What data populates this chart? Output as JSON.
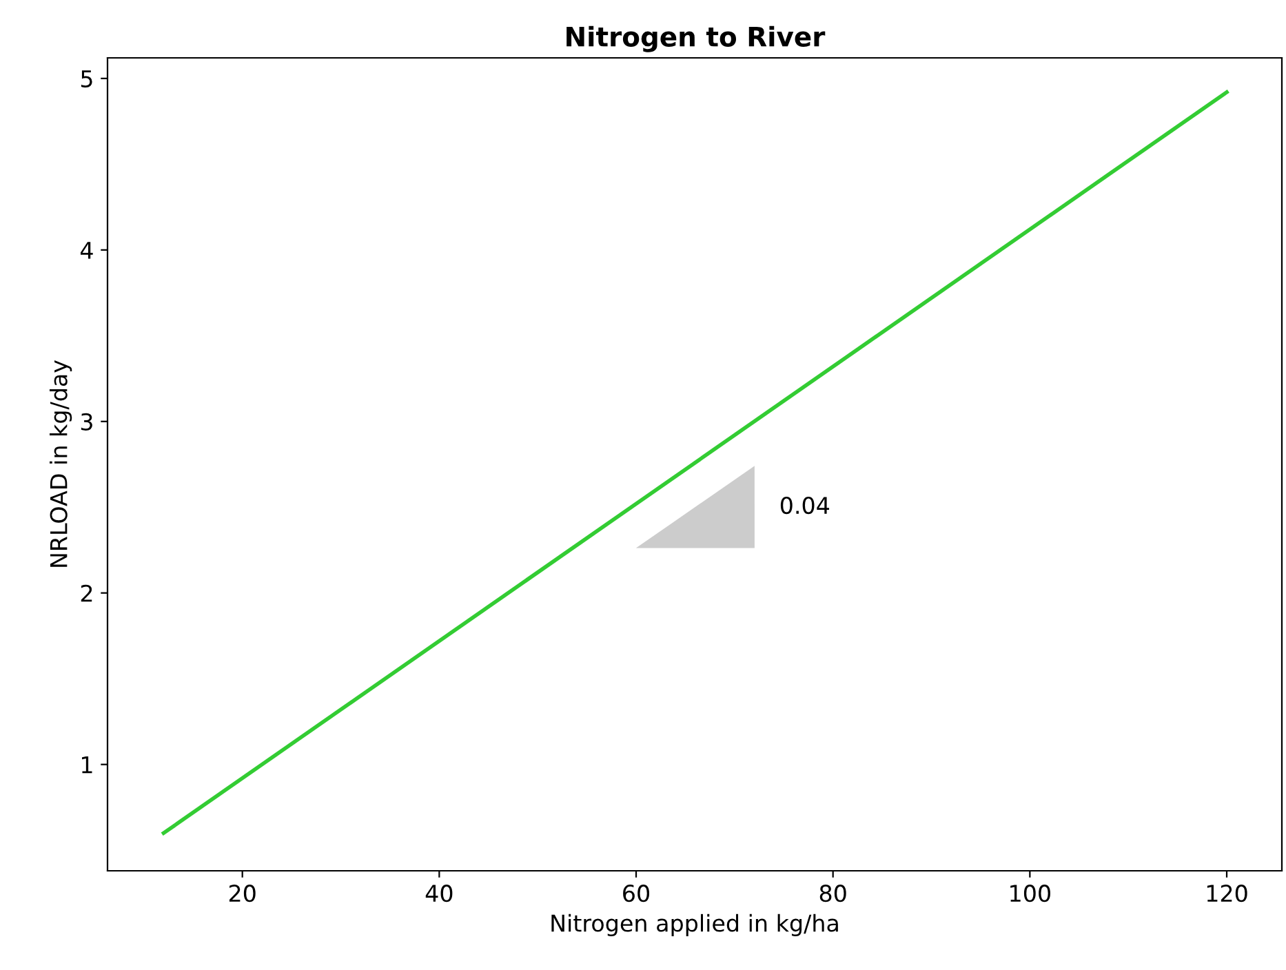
{
  "chart_data": {
    "type": "line",
    "title": "Nitrogen to River",
    "xlabel": "Nitrogen applied in kg/ha",
    "ylabel": "NRLOAD in kg/day",
    "x": [
      12,
      120
    ],
    "series": [
      {
        "color": "#33cc33",
        "values": [
          0.6,
          4.92
        ]
      }
    ],
    "xlim": [
      6.3,
      125.6
    ],
    "ylim": [
      0.38,
      5.12
    ],
    "xticks": [
      20,
      40,
      60,
      80,
      100,
      120
    ],
    "yticks": [
      1,
      2,
      3,
      4,
      5
    ],
    "annotations": [
      "0.04"
    ],
    "grid": false,
    "legend": false
  }
}
